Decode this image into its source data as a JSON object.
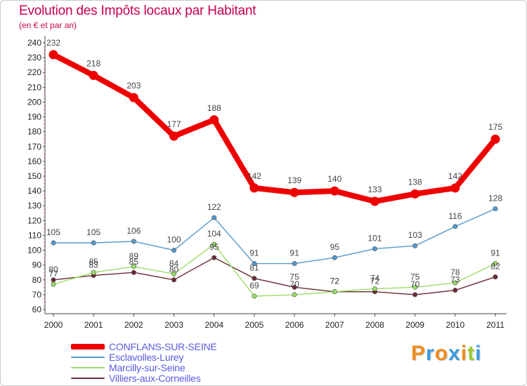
{
  "header": {
    "title": "Evolution des Impôts locaux par Habitant",
    "subtitle": "(en € et par an)"
  },
  "chart_data": {
    "type": "line",
    "title": "Evolution des Impôts locaux par Habitant",
    "subtitle": "(en € et par an)",
    "xlabel": "",
    "ylabel": "",
    "x": [
      "2000",
      "2001",
      "2002",
      "2003",
      "2004",
      "2005",
      "2006",
      "2007",
      "2008",
      "2009",
      "2010",
      "2011"
    ],
    "ylim": [
      60,
      240
    ],
    "yticks": [
      "60",
      "70",
      "80",
      "90",
      "100",
      "110",
      "120",
      "130",
      "140",
      "150",
      "160",
      "170",
      "180",
      "190",
      "200",
      "210",
      "220",
      "230",
      "240"
    ],
    "grid": false,
    "legend_position": "bottom-left",
    "series": [
      {
        "name": "CONFLANS-SUR-SEINE",
        "color": "#ee0000",
        "values": [
          232,
          218,
          203,
          177,
          188,
          142,
          139,
          140,
          133,
          138,
          142,
          175
        ]
      },
      {
        "name": "Esclavolles-Lurey",
        "color": "#5599cc",
        "values": [
          105,
          105,
          106,
          100,
          122,
          91,
          91,
          95,
          101,
          103,
          116,
          128
        ]
      },
      {
        "name": "Marcilly-sur-Seine",
        "color": "#99dd66",
        "values": [
          77,
          85,
          89,
          84,
          104,
          69,
          70,
          72,
          74,
          75,
          78,
          91
        ]
      },
      {
        "name": "Villiers-aux-Corneilles",
        "color": "#6b2b35",
        "values": [
          80,
          83,
          85,
          80,
          95,
          81,
          75,
          72,
          72,
          70,
          73,
          82
        ]
      }
    ]
  },
  "logo": {
    "letters": [
      "P",
      "r",
      "o",
      "x",
      "i",
      "t",
      "i"
    ],
    "colors": [
      "#f28c1e",
      "#3b9be0",
      "#f28c1e",
      "#3b9be0",
      "#f28c1e",
      "#99cc33",
      "#3b9be0"
    ]
  }
}
